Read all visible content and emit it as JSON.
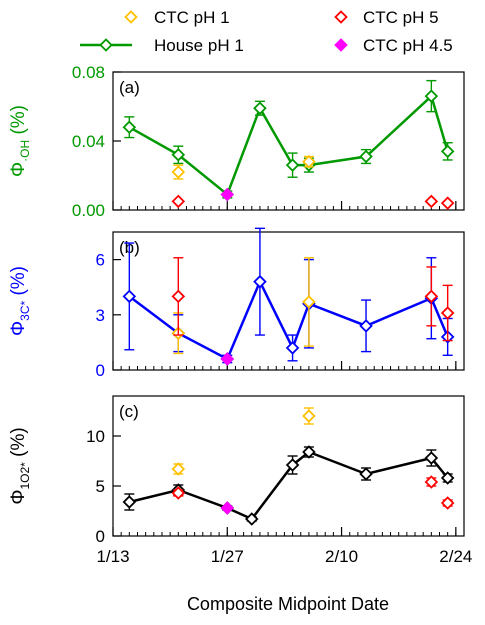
{
  "legend": [
    {
      "key": "ctc1",
      "label": "CTC pH 1",
      "color": "#ffc000",
      "filled": false
    },
    {
      "key": "ctc5",
      "label": "CTC pH 5",
      "color": "#ff0000",
      "filled": false
    },
    {
      "key": "house",
      "label": "House pH 1",
      "color": "#009900",
      "filled": false,
      "line": true
    },
    {
      "key": "ctc45",
      "label": "CTC pH 4.5",
      "color": "#ff00ff",
      "filled": true
    }
  ],
  "xaxis": {
    "label": "Composite Midpoint Date",
    "tick_labels": [
      "1/13",
      "1/27",
      "2/10",
      "2/24"
    ],
    "tick_values": [
      13,
      27,
      41,
      55
    ],
    "range": [
      13,
      56
    ]
  },
  "panels": [
    {
      "id": "a",
      "tag": "(a)",
      "ylabel_main": "Φ",
      "ylabel_sub": "·OH",
      "ylabel_tail": " (%)",
      "color": "#009900",
      "ylim": [
        0,
        0.08
      ],
      "yticks": [
        "0.00",
        "0.04",
        "0.08"
      ],
      "ytick_values": [
        0,
        0.04,
        0.08
      ]
    },
    {
      "id": "b",
      "tag": "(b)",
      "ylabel_main": "Φ",
      "ylabel_sub": "3C*",
      "ylabel_tail": " (%)",
      "color": "#0000ff",
      "ylim": [
        0,
        7.5
      ],
      "yticks": [
        "0",
        "3",
        "6"
      ],
      "ytick_values": [
        0,
        3,
        6
      ]
    },
    {
      "id": "c",
      "tag": "(c)",
      "ylabel_main": "Φ",
      "ylabel_sub": "1O2*",
      "ylabel_tail": " (%)",
      "color": "#000000",
      "ylim": [
        0,
        14
      ],
      "yticks": [
        "0",
        "5",
        "10"
      ],
      "ytick_values": [
        0,
        5,
        10
      ]
    }
  ],
  "chart_data": [
    {
      "type": "line",
      "panel": "a",
      "series": [
        {
          "name": "House pH 1",
          "color": "#009900",
          "line": true,
          "x": [
            15,
            21,
            27,
            31,
            35,
            37,
            44,
            52,
            54
          ],
          "y": [
            0.048,
            0.032,
            0.009,
            0.059,
            0.026,
            0.026,
            0.031,
            0.066,
            0.034
          ],
          "err": [
            0.006,
            0.005,
            0.002,
            0.004,
            0.007,
            0.004,
            0.004,
            0.009,
            0.005
          ]
        },
        {
          "name": "CTC pH 1",
          "color": "#ffc000",
          "x": [
            21,
            37
          ],
          "y": [
            0.022,
            0.028
          ],
          "err": [
            0.004,
            0.003
          ]
        },
        {
          "name": "CTC pH 5",
          "color": "#ff0000",
          "x": [
            21,
            52,
            54
          ],
          "y": [
            0.005,
            0.005,
            0.004
          ],
          "err": [
            0,
            0,
            0
          ]
        },
        {
          "name": "CTC pH 4.5",
          "color": "#ff00ff",
          "filled": true,
          "x": [
            27
          ],
          "y": [
            0.009
          ],
          "err": [
            0
          ]
        }
      ]
    },
    {
      "type": "line",
      "panel": "b",
      "series": [
        {
          "name": "House pH 1",
          "color": "#0000ff",
          "line": true,
          "x": [
            15,
            21,
            27,
            31,
            35,
            37,
            44,
            52,
            54
          ],
          "y": [
            4.0,
            2.0,
            0.6,
            4.8,
            1.2,
            3.6,
            2.4,
            3.9,
            1.8
          ],
          "err": [
            2.9,
            1.0,
            0.2,
            2.9,
            0.7,
            2.4,
            1.4,
            2.2,
            1.0
          ]
        },
        {
          "name": "CTC pH 1",
          "color": "#ffc000",
          "x": [
            21,
            37
          ],
          "y": [
            2.0,
            3.7
          ],
          "err": [
            1.1,
            2.4
          ]
        },
        {
          "name": "CTC pH 5",
          "color": "#ff0000",
          "x": [
            21,
            52,
            54
          ],
          "y": [
            4.0,
            4.0,
            3.1
          ],
          "err": [
            2.1,
            1.6,
            1.5
          ]
        },
        {
          "name": "CTC pH 4.5",
          "color": "#ff00ff",
          "filled": true,
          "x": [
            27
          ],
          "y": [
            0.6
          ],
          "err": [
            0
          ]
        }
      ]
    },
    {
      "type": "line",
      "panel": "c",
      "series": [
        {
          "name": "House pH 1",
          "color": "#000000",
          "line": true,
          "x": [
            15,
            21,
            27,
            30,
            35,
            37,
            44,
            52,
            54
          ],
          "y": [
            3.4,
            4.6,
            2.8,
            1.7,
            7.1,
            8.4,
            6.2,
            7.8,
            5.8
          ],
          "err": [
            0.8,
            0.5,
            0.2,
            0.2,
            0.9,
            0.5,
            0.6,
            0.8,
            0.4
          ]
        },
        {
          "name": "CTC pH 1",
          "color": "#ffc000",
          "x": [
            21,
            37
          ],
          "y": [
            6.7,
            12.0
          ],
          "err": [
            0.5,
            0.8
          ]
        },
        {
          "name": "CTC pH 5",
          "color": "#ff0000",
          "x": [
            21,
            52,
            54
          ],
          "y": [
            4.3,
            5.4,
            3.3
          ],
          "err": [
            0.3,
            0.4,
            0.3
          ]
        },
        {
          "name": "CTC pH 4.5",
          "color": "#ff00ff",
          "filled": true,
          "x": [
            27
          ],
          "y": [
            2.8
          ],
          "err": [
            0
          ]
        }
      ]
    }
  ]
}
